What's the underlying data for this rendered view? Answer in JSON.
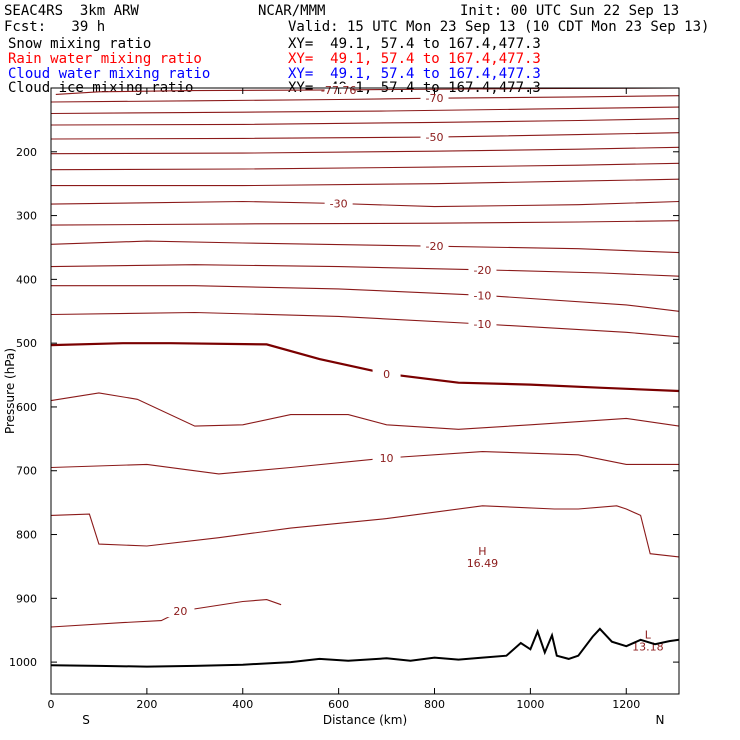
{
  "header": {
    "model": "SEAC4RS  3km ARW",
    "org": "NCAR/MMM",
    "init": "Init: 00 UTC Sun 22 Sep 13",
    "fcst": "Fcst:   39 h",
    "valid": "Valid: 15 UTC Mon 23 Sep 13 (10 CDT Mon 23 Sep 13)",
    "legend": [
      {
        "name": "Snow mixing ratio",
        "xy": "XY=  49.1, 57.4 to 167.4,477.3",
        "color": "#000000"
      },
      {
        "name": "Rain water mixing ratio",
        "xy": "XY=  49.1, 57.4 to 167.4,477.3",
        "color": "#ff0000"
      },
      {
        "name": "Cloud water mixing ratio",
        "xy": "XY=  49.1, 57.4 to 167.4,477.3",
        "color": "#0000ff"
      },
      {
        "name": "Cloud ice mixing ratio",
        "xy": "XY=  49.1, 57.4 to 167.4,477.3",
        "color": "#000000"
      }
    ]
  },
  "colors": {
    "contour": "#8b1a1a",
    "zero_contour": "#7a0000",
    "terrain": "#000000"
  },
  "chart_data": {
    "type": "line",
    "xlabel": "Distance (km)",
    "ylabel": "Pressure (hPa)",
    "xlim": [
      0,
      1310
    ],
    "ylim": [
      1050,
      100
    ],
    "x_ticks": [
      0,
      200,
      400,
      600,
      800,
      1000,
      1200
    ],
    "y_ticks": [
      200,
      300,
      400,
      500,
      600,
      700,
      800,
      900,
      1000
    ],
    "x_end_labels": {
      "left": "S",
      "right": "N"
    },
    "isotherms": [
      {
        "label": "-77.76",
        "points": [
          [
            10,
            110
          ],
          [
            100,
            106
          ],
          [
            300,
            104
          ],
          [
            600,
            103
          ],
          [
            1000,
            101
          ],
          [
            1310,
            100
          ]
        ]
      },
      {
        "label": "-70",
        "points": [
          [
            0,
            122
          ],
          [
            300,
            120
          ],
          [
            600,
            118
          ],
          [
            800,
            116
          ],
          [
            1100,
            114
          ],
          [
            1310,
            112
          ]
        ]
      },
      {
        "label": "",
        "points": [
          [
            0,
            140
          ],
          [
            400,
            138
          ],
          [
            700,
            136
          ],
          [
            1000,
            133
          ],
          [
            1310,
            130
          ]
        ]
      },
      {
        "label": "",
        "points": [
          [
            0,
            158
          ],
          [
            400,
            157
          ],
          [
            800,
            154
          ],
          [
            1100,
            151
          ],
          [
            1310,
            148
          ]
        ]
      },
      {
        "label": "-50",
        "points": [
          [
            0,
            180
          ],
          [
            400,
            179
          ],
          [
            800,
            177
          ],
          [
            1100,
            173
          ],
          [
            1310,
            170
          ]
        ]
      },
      {
        "label": "",
        "points": [
          [
            0,
            203
          ],
          [
            400,
            202
          ],
          [
            800,
            199
          ],
          [
            1100,
            196
          ],
          [
            1310,
            193
          ]
        ]
      },
      {
        "label": "",
        "points": [
          [
            0,
            228
          ],
          [
            400,
            227
          ],
          [
            800,
            224
          ],
          [
            1100,
            221
          ],
          [
            1310,
            218
          ]
        ]
      },
      {
        "label": "",
        "points": [
          [
            0,
            253
          ],
          [
            400,
            253
          ],
          [
            800,
            250
          ],
          [
            1100,
            246
          ],
          [
            1310,
            243
          ]
        ]
      },
      {
        "label": "-30",
        "points": [
          [
            0,
            282
          ],
          [
            200,
            280
          ],
          [
            400,
            278
          ],
          [
            600,
            281
          ],
          [
            800,
            286
          ],
          [
            1100,
            283
          ],
          [
            1310,
            278
          ]
        ]
      },
      {
        "label": "",
        "points": [
          [
            0,
            315
          ],
          [
            400,
            313
          ],
          [
            800,
            312
          ],
          [
            1100,
            310
          ],
          [
            1310,
            308
          ]
        ]
      },
      {
        "label": "-20",
        "points": [
          [
            0,
            345
          ],
          [
            200,
            340
          ],
          [
            400,
            343
          ],
          [
            800,
            348
          ],
          [
            1100,
            352
          ],
          [
            1310,
            358
          ]
        ]
      },
      {
        "label": "-20",
        "points": [
          [
            0,
            380
          ],
          [
            300,
            377
          ],
          [
            600,
            380
          ],
          [
            900,
            385
          ],
          [
            1150,
            390
          ],
          [
            1310,
            395
          ]
        ]
      },
      {
        "label": "-10",
        "points": [
          [
            0,
            410
          ],
          [
            300,
            410
          ],
          [
            600,
            415
          ],
          [
            900,
            425
          ],
          [
            1200,
            440
          ],
          [
            1310,
            450
          ]
        ]
      },
      {
        "label": "-10",
        "points": [
          [
            0,
            455
          ],
          [
            300,
            452
          ],
          [
            600,
            458
          ],
          [
            900,
            470
          ],
          [
            1200,
            483
          ],
          [
            1310,
            490
          ]
        ]
      },
      {
        "label": "0",
        "points": [
          [
            0,
            503
          ],
          [
            150,
            500
          ],
          [
            250,
            500
          ],
          [
            450,
            502
          ],
          [
            560,
            525
          ],
          [
            700,
            548
          ],
          [
            850,
            562
          ],
          [
            1000,
            565
          ],
          [
            1150,
            570
          ],
          [
            1310,
            575
          ]
        ]
      },
      {
        "label": "",
        "points": [
          [
            0,
            590
          ],
          [
            100,
            578
          ],
          [
            180,
            588
          ],
          [
            300,
            630
          ],
          [
            400,
            628
          ],
          [
            500,
            612
          ],
          [
            620,
            612
          ],
          [
            700,
            628
          ],
          [
            850,
            635
          ],
          [
            1000,
            628
          ],
          [
            1200,
            618
          ],
          [
            1310,
            630
          ]
        ]
      },
      {
        "label": "10",
        "points": [
          [
            0,
            695
          ],
          [
            200,
            690
          ],
          [
            350,
            705
          ],
          [
            500,
            695
          ],
          [
            700,
            680
          ],
          [
            900,
            670
          ],
          [
            1100,
            675
          ],
          [
            1200,
            690
          ],
          [
            1310,
            690
          ]
        ]
      },
      {
        "label": "",
        "points": [
          [
            0,
            770
          ],
          [
            80,
            768
          ],
          [
            100,
            815
          ],
          [
            200,
            818
          ],
          [
            350,
            805
          ],
          [
            500,
            790
          ],
          [
            700,
            775
          ],
          [
            900,
            755
          ],
          [
            1050,
            760
          ],
          [
            1100,
            760
          ],
          [
            1180,
            755
          ],
          [
            1200,
            760
          ],
          [
            1230,
            770
          ],
          [
            1250,
            830
          ],
          [
            1310,
            835
          ]
        ]
      },
      {
        "label": "20",
        "points": [
          [
            0,
            945
          ],
          [
            150,
            938
          ],
          [
            230,
            935
          ],
          [
            270,
            920
          ],
          [
            400,
            905
          ],
          [
            450,
            902
          ],
          [
            480,
            910
          ]
        ]
      }
    ],
    "annotations": [
      {
        "text": "H",
        "value": "16.49",
        "x": 900,
        "p": 832
      },
      {
        "text": "L",
        "value": "13.18",
        "x": 1245,
        "p": 963
      }
    ],
    "terrain": {
      "points": [
        [
          0,
          1005
        ],
        [
          100,
          1006
        ],
        [
          200,
          1007
        ],
        [
          300,
          1006
        ],
        [
          400,
          1004
        ],
        [
          500,
          1000
        ],
        [
          560,
          995
        ],
        [
          620,
          998
        ],
        [
          700,
          994
        ],
        [
          750,
          998
        ],
        [
          800,
          993
        ],
        [
          850,
          996
        ],
        [
          900,
          993
        ],
        [
          950,
          990
        ],
        [
          980,
          970
        ],
        [
          1000,
          980
        ],
        [
          1015,
          952
        ],
        [
          1030,
          985
        ],
        [
          1045,
          958
        ],
        [
          1055,
          990
        ],
        [
          1080,
          995
        ],
        [
          1100,
          990
        ],
        [
          1130,
          960
        ],
        [
          1145,
          948
        ],
        [
          1170,
          968
        ],
        [
          1200,
          975
        ],
        [
          1230,
          965
        ],
        [
          1260,
          972
        ],
        [
          1290,
          967
        ],
        [
          1310,
          965
        ]
      ]
    }
  }
}
